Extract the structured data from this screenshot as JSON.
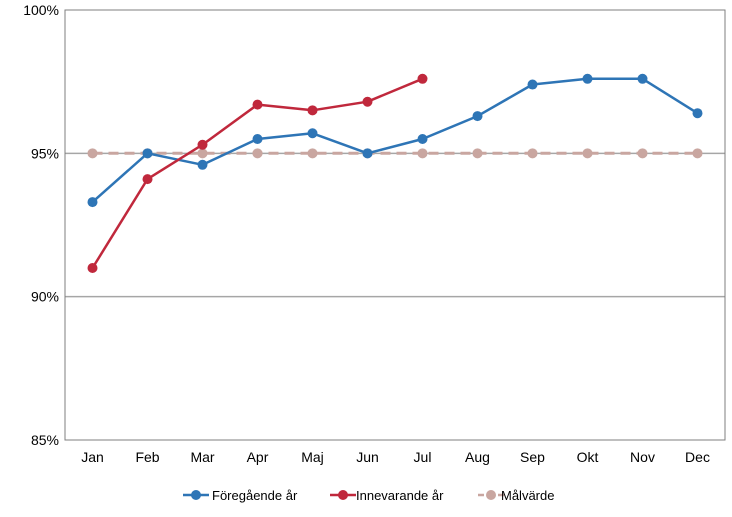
{
  "chart_data": {
    "type": "line",
    "categories": [
      "Jan",
      "Feb",
      "Mar",
      "Apr",
      "Maj",
      "Jun",
      "Jul",
      "Aug",
      "Sep",
      "Okt",
      "Nov",
      "Dec"
    ],
    "ylim": [
      85,
      100
    ],
    "yticks": [
      85,
      90,
      95,
      100
    ],
    "ytick_labels": [
      "85%",
      "90%",
      "95%",
      "100%"
    ],
    "grid": "horizontal",
    "legend_position": "bottom",
    "series": [
      {
        "name": "Föregående år",
        "color": "#2E75B6",
        "dashed": false,
        "values": [
          93.3,
          95.0,
          94.6,
          95.5,
          95.7,
          95.0,
          95.5,
          96.3,
          97.4,
          97.6,
          97.6,
          96.4
        ]
      },
      {
        "name": "Innevarande år",
        "color": "#C0283C",
        "dashed": false,
        "values": [
          91.0,
          94.1,
          95.3,
          96.7,
          96.5,
          96.8,
          97.6,
          null,
          null,
          null,
          null,
          null
        ]
      },
      {
        "name": "Målvärde",
        "color": "#C9A6A0",
        "dashed": true,
        "values": [
          95,
          95,
          95,
          95,
          95,
          95,
          95,
          95,
          95,
          95,
          95,
          95
        ]
      }
    ]
  }
}
